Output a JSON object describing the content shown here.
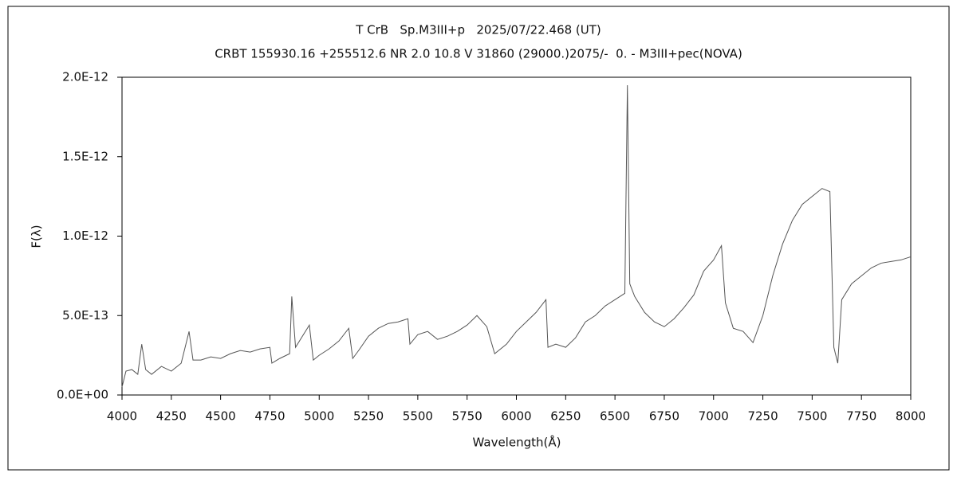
{
  "chart_data": {
    "type": "line",
    "title": "T CrB   Sp.M3III+p   2025/07/22.468 (UT)",
    "subtitle": "CRBT 155930.16 +255512.6 NR 2.0 10.8 V 31860 (29000.)2075/-  0. - M3III+pec(NOVA)",
    "x_label": "Wavelength(Å)",
    "y_label": "F(λ)",
    "xlim": [
      4000,
      8000
    ],
    "xticks": [
      4000,
      4250,
      4500,
      4750,
      5000,
      5250,
      5500,
      5750,
      6000,
      6250,
      6500,
      6750,
      7000,
      7250,
      7500,
      7750,
      8000
    ],
    "ylim": [
      0,
      2e-12
    ],
    "yticks": [
      {
        "value": 0,
        "label": "0.0E+00"
      },
      {
        "value": 5e-13,
        "label": "5.0E-13"
      },
      {
        "value": 1e-12,
        "label": "1.0E-12"
      },
      {
        "value": 1.5e-12,
        "label": "1.5E-12"
      },
      {
        "value": 2e-12,
        "label": "2.0E-12"
      }
    ],
    "grid": false,
    "series": [
      {
        "color": "#555555",
        "x": [
          4000,
          4020,
          4050,
          4080,
          4100,
          4120,
          4150,
          4200,
          4250,
          4300,
          4340,
          4360,
          4400,
          4450,
          4500,
          4550,
          4600,
          4650,
          4700,
          4750,
          4760,
          4800,
          4850,
          4861,
          4880,
          4950,
          4970,
          5000,
          5050,
          5100,
          5150,
          5170,
          5200,
          5250,
          5300,
          5350,
          5400,
          5450,
          5460,
          5500,
          5550,
          5600,
          5650,
          5700,
          5750,
          5800,
          5850,
          5890,
          5950,
          6000,
          6050,
          6100,
          6150,
          6160,
          6200,
          6250,
          6300,
          6350,
          6400,
          6450,
          6500,
          6550,
          6563,
          6575,
          6600,
          6650,
          6700,
          6750,
          6800,
          6850,
          6900,
          6950,
          7000,
          7040,
          7060,
          7100,
          7150,
          7200,
          7250,
          7300,
          7350,
          7400,
          7450,
          7500,
          7550,
          7590,
          7610,
          7630,
          7650,
          7700,
          7750,
          7800,
          7850,
          7900,
          7950,
          8000
        ],
        "values": [
          5e-14,
          1.5e-13,
          1.6e-13,
          1.3e-13,
          3.2e-13,
          1.6e-13,
          1.3e-13,
          1.8e-13,
          1.5e-13,
          2e-13,
          4e-13,
          2.2e-13,
          2.2e-13,
          2.4e-13,
          2.3e-13,
          2.6e-13,
          2.8e-13,
          2.7e-13,
          2.9e-13,
          3e-13,
          2e-13,
          2.3e-13,
          2.6e-13,
          6.2e-13,
          3e-13,
          4.4e-13,
          2.2e-13,
          2.5e-13,
          2.9e-13,
          3.4e-13,
          4.2e-13,
          2.3e-13,
          2.8e-13,
          3.7e-13,
          4.2e-13,
          4.5e-13,
          4.6e-13,
          4.8e-13,
          3.2e-13,
          3.8e-13,
          4e-13,
          3.5e-13,
          3.7e-13,
          4e-13,
          4.4e-13,
          5e-13,
          4.3e-13,
          2.6e-13,
          3.2e-13,
          4e-13,
          4.6e-13,
          5.2e-13,
          6e-13,
          3e-13,
          3.2e-13,
          3e-13,
          3.6e-13,
          4.6e-13,
          5e-13,
          5.6e-13,
          6e-13,
          6.4e-13,
          1.95e-12,
          7e-13,
          6.2e-13,
          5.2e-13,
          4.6e-13,
          4.3e-13,
          4.8e-13,
          5.5e-13,
          6.3e-13,
          7.8e-13,
          8.5e-13,
          9.4e-13,
          5.8e-13,
          4.2e-13,
          4e-13,
          3.3e-13,
          5e-13,
          7.5e-13,
          9.5e-13,
          1.1e-12,
          1.2e-12,
          1.25e-12,
          1.3e-12,
          1.28e-12,
          3e-13,
          2e-13,
          6e-13,
          7e-13,
          7.5e-13,
          8e-13,
          8.3e-13,
          8.4e-13,
          8.5e-13,
          8.7e-13
        ]
      }
    ]
  }
}
